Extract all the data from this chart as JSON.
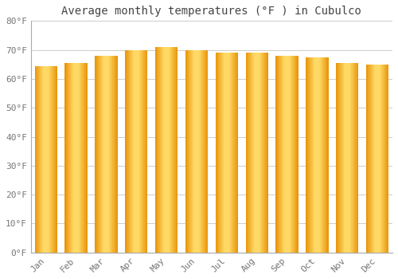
{
  "title": "Average monthly temperatures (°F ) in Cubulco",
  "months": [
    "Jan",
    "Feb",
    "Mar",
    "Apr",
    "May",
    "Jun",
    "Jul",
    "Aug",
    "Sep",
    "Oct",
    "Nov",
    "Dec"
  ],
  "values": [
    64.5,
    65.5,
    68.0,
    70.0,
    71.0,
    70.0,
    69.0,
    69.0,
    68.0,
    67.5,
    65.5,
    65.0
  ],
  "bar_color_center": "#FFD966",
  "bar_color_edge": "#E8950A",
  "background_color": "#FFFFFF",
  "plot_bg_color": "#FFFFFF",
  "ylim": [
    0,
    80
  ],
  "yticks": [
    0,
    10,
    20,
    30,
    40,
    50,
    60,
    70,
    80
  ],
  "grid_color": "#CCCCCC",
  "title_fontsize": 10,
  "tick_fontsize": 8,
  "tick_font_family": "monospace",
  "tick_color": "#777777",
  "bar_width": 0.75
}
